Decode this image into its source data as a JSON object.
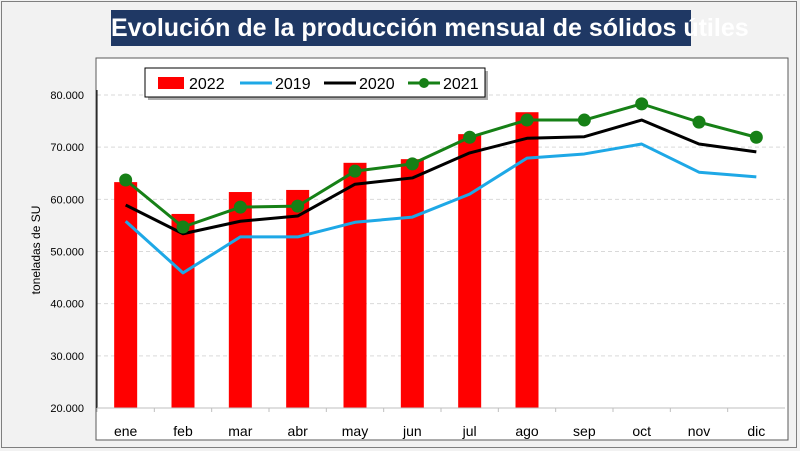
{
  "chart_data": {
    "type": "bar+line",
    "title": "Evolución de la producción mensual de sólidos útiles",
    "xlabel": "",
    "ylabel": "toneladas de SU",
    "ylim": [
      20000,
      80000
    ],
    "yticks": [
      "20.000",
      "30.000",
      "40.000",
      "50.000",
      "60.000",
      "70.000",
      "80.000"
    ],
    "ytick_values": [
      20000,
      30000,
      40000,
      50000,
      60000,
      70000,
      80000
    ],
    "grid": true,
    "legend_position": "top",
    "categories": [
      "ene",
      "feb",
      "mar",
      "abr",
      "may",
      "jun",
      "jul",
      "ago",
      "sep",
      "oct",
      "nov",
      "dic"
    ],
    "series": [
      {
        "name": "2022",
        "type": "bar",
        "color": "#ff0000",
        "values": [
          63300,
          57200,
          61400,
          61800,
          67000,
          67700,
          72500,
          76700,
          null,
          null,
          null,
          null
        ]
      },
      {
        "name": "2019",
        "type": "line",
        "color": "#1ea8e6",
        "values": [
          55800,
          45900,
          52800,
          52800,
          55600,
          56600,
          61000,
          67900,
          68700,
          70600,
          65200,
          64300
        ]
      },
      {
        "name": "2020",
        "type": "line",
        "color": "#000000",
        "values": [
          58900,
          53400,
          55800,
          56800,
          62900,
          64100,
          68900,
          71700,
          72000,
          75200,
          70600,
          69100
        ]
      },
      {
        "name": "2021",
        "type": "line-marker",
        "color": "#168016",
        "values": [
          63700,
          54700,
          58500,
          58700,
          65400,
          66800,
          71900,
          75200,
          75200,
          78300,
          74800,
          71900
        ]
      }
    ]
  }
}
